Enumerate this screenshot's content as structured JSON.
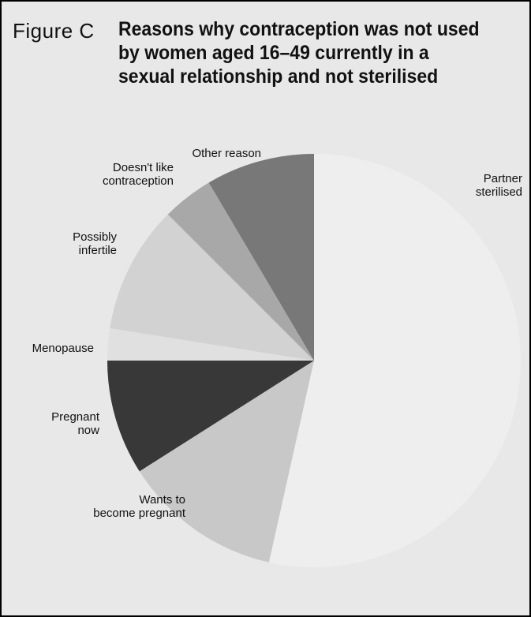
{
  "figure": {
    "label": "Figure C",
    "title": "Reasons why contraception was not used\nby women aged 16–49 currently in a\nsexual relationship and not sterilised"
  },
  "colors": {
    "background": "#e8e8e8",
    "border": "#000000"
  },
  "chart_data": {
    "type": "pie",
    "title": "Reasons why contraception was not used by women aged 16–49 currently in a sexual relationship and not sterilised",
    "start": "12 o'clock",
    "direction": "clockwise",
    "legend": "none",
    "slices": [
      {
        "label": [
          "Partner",
          "sterilised"
        ],
        "value": 53.5,
        "color": "#eeeeee"
      },
      {
        "label": [
          "Wants to",
          "become pregnant"
        ],
        "value": 12.5,
        "color": "#c8c8c8"
      },
      {
        "label": [
          "Pregnant",
          "now"
        ],
        "value": 9.0,
        "color": "#383838"
      },
      {
        "label": [
          "Menopause"
        ],
        "value": 2.5,
        "color": "#e0e0e0"
      },
      {
        "label": [
          "Possibly",
          "infertile"
        ],
        "value": 10.0,
        "color": "#d2d2d2"
      },
      {
        "label": [
          "Doesn't like",
          "contraception"
        ],
        "value": 4.0,
        "color": "#a8a8a8"
      },
      {
        "label": [
          "Other reason"
        ],
        "value": 8.5,
        "color": "#787878"
      }
    ]
  }
}
